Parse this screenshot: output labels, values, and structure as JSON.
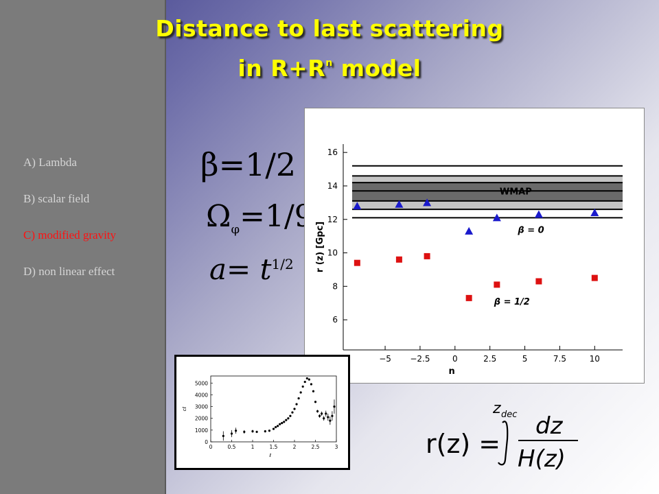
{
  "slide": {
    "title_line1": "Distance to last scattering",
    "title_line2_prefix": "in  R+R",
    "title_line2_sup": "n",
    "title_line2_suffix": " model",
    "title_color": "#ffff00"
  },
  "sidebar": {
    "items": [
      {
        "label": "A) Lambda",
        "active": false
      },
      {
        "label": "B) scalar field",
        "active": false
      },
      {
        "label": "C) modified gravity",
        "active": true
      },
      {
        "label": "D) non linear effect",
        "active": false
      }
    ],
    "active_color": "#ff1111"
  },
  "equations": {
    "beta": "β=1/2",
    "omega_symbol": "Ω",
    "omega_sub": "φ",
    "omega_value": "=1/9",
    "a_lhs": "a",
    "a_eq": "=",
    "a_base": "t",
    "a_exp": "1/2",
    "r_lhs": "r(z) =",
    "r_upper": "z",
    "r_upper_sub": "dec",
    "r_num": "dz",
    "r_den": "H(z)"
  },
  "chart_data": [
    {
      "type": "scatter",
      "xlabel": "n",
      "ylabel": "r (z) [Gpc]",
      "xlim": [
        -8,
        12
      ],
      "ylim": [
        4.2,
        16.5
      ],
      "x_ticks": [
        -5,
        -2.5,
        0,
        2.5,
        5,
        7.5,
        10
      ],
      "x_tick_labels": [
        "−5",
        "−2.5",
        "0",
        "2.5",
        "5",
        "7.5",
        "10"
      ],
      "y_ticks": [
        6,
        8,
        10,
        12,
        14,
        16
      ],
      "y_tick_labels": [
        "6",
        "8",
        "10",
        "12",
        "14",
        "16"
      ],
      "bands": {
        "label": "WMAP",
        "lines": [
          12.1,
          12.6,
          13.1,
          13.7,
          14.2,
          14.6,
          15.2
        ],
        "outer": [
          12.6,
          14.6
        ],
        "inner": [
          13.1,
          14.2
        ]
      },
      "series": [
        {
          "name": "β = 0",
          "marker": "triangle",
          "color": "#1a1acc",
          "x": [
            -7,
            -4,
            -2,
            1,
            3,
            6,
            10
          ],
          "y": [
            12.8,
            12.9,
            13.0,
            11.3,
            12.1,
            12.3,
            12.4
          ]
        },
        {
          "name": "β = 1/2",
          "marker": "square",
          "color": "#dd1111",
          "x": [
            -7,
            -4,
            -2,
            1,
            3,
            6,
            10
          ],
          "y": [
            9.4,
            9.6,
            9.8,
            7.3,
            8.1,
            8.3,
            8.5
          ]
        }
      ]
    },
    {
      "type": "scatter",
      "xlabel": "ℓ",
      "ylabel": "cℓ",
      "xlim": [
        0,
        3
      ],
      "ylim": [
        0,
        5600
      ],
      "x_ticks": [
        0,
        0.5,
        1,
        1.5,
        2,
        2.5,
        3
      ],
      "x_tick_labels": [
        "0",
        "0.5",
        "1",
        "1.5",
        "2",
        "2.5",
        "3"
      ],
      "y_ticks": [
        0,
        1000,
        2000,
        3000,
        4000,
        5000
      ],
      "y_tick_labels": [
        "0",
        "1000",
        "2000",
        "3000",
        "4000",
        "5000"
      ],
      "series": [
        {
          "name": "",
          "x": [
            0.3,
            0.5,
            0.6,
            0.8,
            1.0,
            1.1,
            1.3,
            1.4,
            1.5,
            1.55,
            1.6,
            1.65,
            1.7,
            1.75,
            1.8,
            1.85,
            1.9,
            1.95,
            2.0,
            2.05,
            2.1,
            2.15,
            2.2,
            2.25,
            2.3,
            2.35,
            2.4,
            2.45,
            2.5,
            2.55,
            2.6,
            2.65,
            2.7,
            2.75,
            2.8,
            2.85,
            2.9,
            2.95
          ],
          "y": [
            500,
            700,
            950,
            850,
            900,
            850,
            900,
            950,
            1100,
            1250,
            1350,
            1500,
            1600,
            1700,
            1850,
            2000,
            2200,
            2500,
            2800,
            3200,
            3700,
            4200,
            4700,
            5100,
            5400,
            5300,
            4900,
            4300,
            3400,
            2600,
            2200,
            2400,
            2000,
            2400,
            2100,
            1800,
            2200,
            3000
          ],
          "err": [
            400,
            300,
            250,
            150,
            120,
            100,
            100,
            80,
            80,
            80,
            80,
            80,
            80,
            80,
            80,
            80,
            80,
            80,
            80,
            80,
            80,
            80,
            80,
            80,
            80,
            80,
            80,
            80,
            100,
            120,
            150,
            180,
            200,
            250,
            300,
            350,
            400,
            600
          ]
        }
      ]
    }
  ]
}
